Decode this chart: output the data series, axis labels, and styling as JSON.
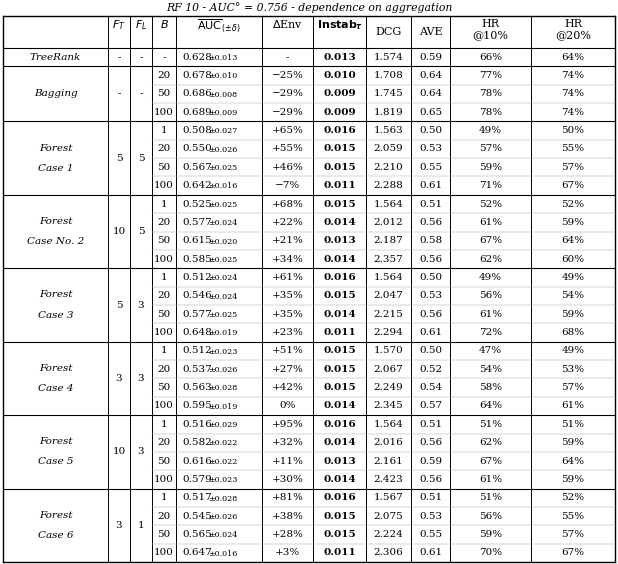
{
  "title": "RF 10 - AUC° = 0.756 - dependence on aggregation",
  "rows": [
    {
      "label": [
        "TreeRank"
      ],
      "ft": "-",
      "fl": "-",
      "sub_rows": [
        {
          "b": "-",
          "auc": "0.628",
          "pm": "±0.013",
          "denv": "-",
          "instab": "0.013",
          "dcg": "1.574",
          "ave": "0.59",
          "hr10": "66%",
          "hr20": "64%"
        }
      ]
    },
    {
      "label": [
        "Bagging"
      ],
      "ft": "-",
      "fl": "-",
      "sub_rows": [
        {
          "b": "20",
          "auc": "0.678",
          "pm": "±0.010",
          "denv": "−25%",
          "instab": "0.010",
          "dcg": "1.708",
          "ave": "0.64",
          "hr10": "77%",
          "hr20": "74%"
        },
        {
          "b": "50",
          "auc": "0.686",
          "pm": "±0.008",
          "denv": "−29%",
          "instab": "0.009",
          "dcg": "1.745",
          "ave": "0.64",
          "hr10": "78%",
          "hr20": "74%"
        },
        {
          "b": "100",
          "auc": "0.689",
          "pm": "±0.009",
          "denv": "−29%",
          "instab": "0.009",
          "dcg": "1.819",
          "ave": "0.65",
          "hr10": "78%",
          "hr20": "74%"
        }
      ]
    },
    {
      "label": [
        "Forest",
        "Case 1"
      ],
      "ft": "5",
      "fl": "5",
      "sub_rows": [
        {
          "b": "1",
          "auc": "0.508",
          "pm": "±0.027",
          "denv": "+65%",
          "instab": "0.016",
          "dcg": "1.563",
          "ave": "0.50",
          "hr10": "49%",
          "hr20": "50%"
        },
        {
          "b": "20",
          "auc": "0.550",
          "pm": "±0.026",
          "denv": "+55%",
          "instab": "0.015",
          "dcg": "2.059",
          "ave": "0.53",
          "hr10": "57%",
          "hr20": "55%"
        },
        {
          "b": "50",
          "auc": "0.567",
          "pm": "±0.025",
          "denv": "+46%",
          "instab": "0.015",
          "dcg": "2.210",
          "ave": "0.55",
          "hr10": "59%",
          "hr20": "57%"
        },
        {
          "b": "100",
          "auc": "0.642",
          "pm": "±0.016",
          "denv": "−7%",
          "instab": "0.011",
          "dcg": "2.288",
          "ave": "0.61",
          "hr10": "71%",
          "hr20": "67%"
        }
      ]
    },
    {
      "label": [
        "Forest",
        "Case No. 2"
      ],
      "ft": "10",
      "fl": "5",
      "sub_rows": [
        {
          "b": "1",
          "auc": "0.525",
          "pm": "±0.025",
          "denv": "+68%",
          "instab": "0.015",
          "dcg": "1.564",
          "ave": "0.51",
          "hr10": "52%",
          "hr20": "52%"
        },
        {
          "b": "20",
          "auc": "0.577",
          "pm": "±0.024",
          "denv": "+22%",
          "instab": "0.014",
          "dcg": "2.012",
          "ave": "0.56",
          "hr10": "61%",
          "hr20": "59%"
        },
        {
          "b": "50",
          "auc": "0.615",
          "pm": "±0.020",
          "denv": "+21%",
          "instab": "0.013",
          "dcg": "2.187",
          "ave": "0.58",
          "hr10": "67%",
          "hr20": "64%"
        },
        {
          "b": "100",
          "auc": "0.585",
          "pm": "±0.025",
          "denv": "+34%",
          "instab": "0.014",
          "dcg": "2.357",
          "ave": "0.56",
          "hr10": "62%",
          "hr20": "60%"
        }
      ]
    },
    {
      "label": [
        "Forest",
        "Case 3"
      ],
      "ft": "5",
      "fl": "3",
      "sub_rows": [
        {
          "b": "1",
          "auc": "0.512",
          "pm": "±0.024",
          "denv": "+61%",
          "instab": "0.016",
          "dcg": "1.564",
          "ave": "0.50",
          "hr10": "49%",
          "hr20": "49%"
        },
        {
          "b": "20",
          "auc": "0.546",
          "pm": "±0.024",
          "denv": "+35%",
          "instab": "0.015",
          "dcg": "2.047",
          "ave": "0.53",
          "hr10": "56%",
          "hr20": "54%"
        },
        {
          "b": "50",
          "auc": "0.577",
          "pm": "±0.025",
          "denv": "+35%",
          "instab": "0.014",
          "dcg": "2.215",
          "ave": "0.56",
          "hr10": "61%",
          "hr20": "59%"
        },
        {
          "b": "100",
          "auc": "0.648",
          "pm": "±0.019",
          "denv": "+23%",
          "instab": "0.011",
          "dcg": "2.294",
          "ave": "0.61",
          "hr10": "72%",
          "hr20": "68%"
        }
      ]
    },
    {
      "label": [
        "Forest",
        "Case 4"
      ],
      "ft": "3",
      "fl": "3",
      "sub_rows": [
        {
          "b": "1",
          "auc": "0.512",
          "pm": "±0.023",
          "denv": "+51%",
          "instab": "0.015",
          "dcg": "1.570",
          "ave": "0.50",
          "hr10": "47%",
          "hr20": "49%"
        },
        {
          "b": "20",
          "auc": "0.537",
          "pm": "±0.026",
          "denv": "+27%",
          "instab": "0.015",
          "dcg": "2.067",
          "ave": "0.52",
          "hr10": "54%",
          "hr20": "53%"
        },
        {
          "b": "50",
          "auc": "0.563",
          "pm": "±0.028",
          "denv": "+42%",
          "instab": "0.015",
          "dcg": "2.249",
          "ave": "0.54",
          "hr10": "58%",
          "hr20": "57%"
        },
        {
          "b": "100",
          "auc": "0.595",
          "pm": "±0.019",
          "denv": "0%",
          "instab": "0.014",
          "dcg": "2.345",
          "ave": "0.57",
          "hr10": "64%",
          "hr20": "61%"
        }
      ]
    },
    {
      "label": [
        "Forest",
        "Case 5"
      ],
      "ft": "10",
      "fl": "3",
      "sub_rows": [
        {
          "b": "1",
          "auc": "0.516",
          "pm": "±0.029",
          "denv": "+95%",
          "instab": "0.016",
          "dcg": "1.564",
          "ave": "0.51",
          "hr10": "51%",
          "hr20": "51%"
        },
        {
          "b": "20",
          "auc": "0.582",
          "pm": "±0.022",
          "denv": "+32%",
          "instab": "0.014",
          "dcg": "2.016",
          "ave": "0.56",
          "hr10": "62%",
          "hr20": "59%"
        },
        {
          "b": "50",
          "auc": "0.616",
          "pm": "±0.022",
          "denv": "+11%",
          "instab": "0.013",
          "dcg": "2.161",
          "ave": "0.59",
          "hr10": "67%",
          "hr20": "64%"
        },
        {
          "b": "100",
          "auc": "0.579",
          "pm": "±0.023",
          "denv": "+30%",
          "instab": "0.014",
          "dcg": "2.423",
          "ave": "0.56",
          "hr10": "61%",
          "hr20": "59%"
        }
      ]
    },
    {
      "label": [
        "Forest",
        "Case 6"
      ],
      "ft": "3",
      "fl": "1",
      "sub_rows": [
        {
          "b": "1",
          "auc": "0.517",
          "pm": "±0.028",
          "denv": "+81%",
          "instab": "0.016",
          "dcg": "1.567",
          "ave": "0.51",
          "hr10": "51%",
          "hr20": "52%"
        },
        {
          "b": "20",
          "auc": "0.545",
          "pm": "±0.026",
          "denv": "+38%",
          "instab": "0.015",
          "dcg": "2.075",
          "ave": "0.53",
          "hr10": "56%",
          "hr20": "55%"
        },
        {
          "b": "50",
          "auc": "0.565",
          "pm": "±0.024",
          "denv": "+28%",
          "instab": "0.015",
          "dcg": "2.224",
          "ave": "0.55",
          "hr10": "59%",
          "hr20": "57%"
        },
        {
          "b": "100",
          "auc": "0.647",
          "pm": "±0.016",
          "denv": "+3%",
          "instab": "0.011",
          "dcg": "2.306",
          "ave": "0.61",
          "hr10": "70%",
          "hr20": "67%"
        }
      ]
    }
  ]
}
